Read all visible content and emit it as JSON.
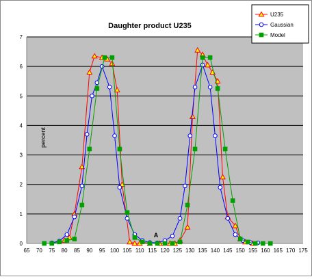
{
  "chart_data": {
    "type": "line",
    "title": "Daughter product U235",
    "ylabel": "percent",
    "xlabel": "",
    "annotation": "A",
    "xlim": [
      65,
      175
    ],
    "ylim": [
      0,
      7
    ],
    "xticks": [
      65,
      70,
      75,
      80,
      85,
      90,
      95,
      100,
      105,
      110,
      115,
      120,
      125,
      130,
      135,
      140,
      145,
      150,
      155,
      160,
      165,
      170,
      175
    ],
    "yticks": [
      0,
      1,
      2,
      3,
      4,
      5,
      6,
      7
    ],
    "grid": "horizontal",
    "legend_position": "top-right",
    "plot_bg": "#c0c0c0",
    "series": [
      {
        "name": "U235",
        "color": "#ff0000",
        "marker": "triangle",
        "x": [
          80,
          82,
          84,
          87,
          90,
          92,
          95,
          97,
          99,
          101,
          103,
          106,
          108,
          110,
          114,
          118,
          122,
          124,
          126,
          129,
          131,
          133,
          135,
          137,
          139,
          141,
          143,
          145,
          148,
          150,
          152,
          155
        ],
        "y": [
          0.1,
          0.2,
          1.0,
          2.6,
          5.8,
          6.35,
          6.3,
          6.25,
          6.1,
          5.2,
          2.0,
          0.05,
          0.0,
          0.0,
          0.0,
          0.0,
          0.0,
          0.0,
          0.1,
          0.55,
          4.3,
          6.55,
          6.4,
          6.05,
          5.8,
          5.5,
          2.25,
          0.9,
          0.6,
          0.15,
          0.05,
          0.0
        ]
      },
      {
        "name": "Gaussian",
        "color": "#0000ff",
        "marker": "circle",
        "x": [
          75,
          78,
          81,
          84,
          87,
          89,
          91,
          93,
          95,
          98,
          100,
          102,
          105,
          108,
          111,
          114,
          117,
          120,
          123,
          126,
          128,
          130,
          132,
          135,
          138,
          140,
          142,
          145,
          148,
          151,
          154,
          157
        ],
        "y": [
          0.02,
          0.08,
          0.3,
          0.9,
          1.95,
          3.7,
          5.0,
          5.45,
          6.0,
          5.3,
          3.65,
          1.9,
          0.85,
          0.3,
          0.1,
          0.03,
          0.02,
          0.1,
          0.25,
          0.85,
          1.95,
          3.65,
          5.3,
          6.05,
          5.3,
          3.65,
          1.9,
          0.85,
          0.3,
          0.1,
          0.03,
          0.02
        ]
      },
      {
        "name": "Model",
        "color": "#00a000",
        "marker": "square",
        "x": [
          72,
          75,
          78,
          81,
          84,
          87,
          90,
          93,
          96,
          99,
          102,
          105,
          108,
          111,
          114,
          117,
          120,
          123,
          126,
          129,
          132,
          135,
          138,
          141,
          144,
          147,
          150,
          153,
          156,
          159,
          162
        ],
        "y": [
          0.0,
          0.0,
          0.05,
          0.1,
          0.15,
          1.3,
          3.2,
          5.25,
          6.3,
          6.3,
          3.2,
          1.05,
          0.2,
          0.05,
          0.0,
          0.0,
          0.0,
          0.0,
          0.05,
          1.3,
          3.2,
          6.3,
          6.3,
          5.25,
          3.2,
          1.45,
          0.15,
          0.05,
          0.0,
          0.0,
          0.0
        ]
      }
    ]
  }
}
